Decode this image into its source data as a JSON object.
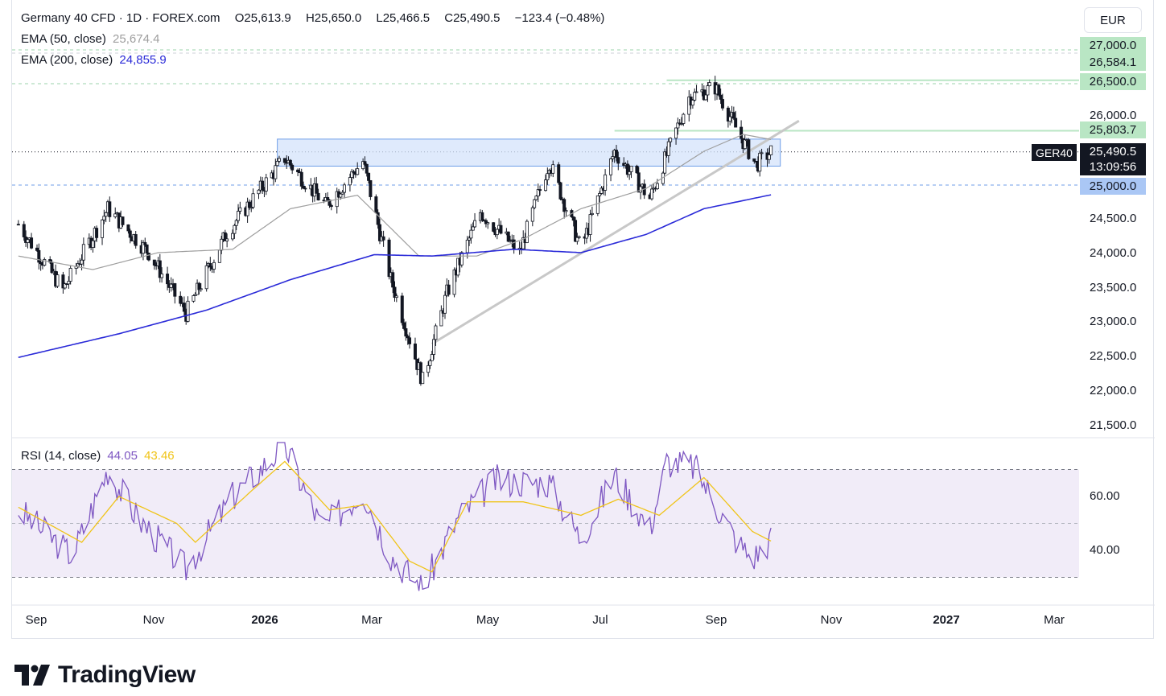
{
  "header": {
    "symbol_line": "Germany 40 CFD · 1D · FOREX.com",
    "open_label": "O",
    "open": "25,613.9",
    "high_label": "H",
    "high": "25,650.0",
    "low_label": "L",
    "low": "25,466.5",
    "close_label": "C",
    "close": "25,490.5",
    "change": "−123.4 (−0.48%)"
  },
  "indicators": {
    "ema50_label": "EMA (50, close)",
    "ema50_value": "25,674.4",
    "ema200_label": "EMA (200, close)",
    "ema200_value": "24,855.9",
    "rsi_label": "RSI (14, close)",
    "rsi_value": "44.05",
    "rsi_ma_value": "43.46"
  },
  "currency": "EUR",
  "symbol_tag": "GER40",
  "price_tags": {
    "t27000": "27,000.0",
    "t26584": "26,584.1",
    "t26500": "26,500.0",
    "t25803": "25,803.7",
    "last": "25,490.5",
    "countdown": "13:09:56",
    "t25000": "25,000.0"
  },
  "price_axis": [
    "26,000.0",
    "24,500.0",
    "24,000.0",
    "23,500.0",
    "23,000.0",
    "22,500.0",
    "22,000.0",
    "21,500.0"
  ],
  "rsi_axis": [
    "60.00",
    "40.00"
  ],
  "time_axis": [
    {
      "label": "Sep",
      "bold": false
    },
    {
      "label": "Nov",
      "bold": false
    },
    {
      "label": "2026",
      "bold": true
    },
    {
      "label": "Mar",
      "bold": false
    },
    {
      "label": "May",
      "bold": false
    },
    {
      "label": "Jul",
      "bold": false
    },
    {
      "label": "Sep",
      "bold": false
    },
    {
      "label": "Nov",
      "bold": false
    },
    {
      "label": "2027",
      "bold": true
    },
    {
      "label": "Mar",
      "bold": false
    }
  ],
  "logo_text": "TradingView",
  "colors": {
    "candle": "#131722",
    "ema50": "#9e9e9e",
    "ema200": "#2a2ad8",
    "rsi": "#7e57c2",
    "rsi_ma": "#f0c419",
    "zone": "#d4e3fb",
    "trendline": "#c8c8c8"
  },
  "chart_data": {
    "type": "candlestick",
    "price_range": [
      21400,
      27150
    ],
    "rsi_range": [
      25,
      82
    ],
    "key_points": [
      {
        "date": "2025-08-22",
        "close": 24420
      },
      {
        "date": "2025-09-15",
        "close": 23450
      },
      {
        "date": "2025-10-09",
        "close": 24650
      },
      {
        "date": "2025-10-31",
        "close": 24000
      },
      {
        "date": "2025-11-20",
        "close": 23100
      },
      {
        "date": "2025-12-12",
        "close": 24300
      },
      {
        "date": "2026-01-12",
        "close": 25400
      },
      {
        "date": "2026-02-03",
        "close": 24700
      },
      {
        "date": "2026-02-23",
        "close": 25350
      },
      {
        "date": "2026-03-10",
        "close": 23600
      },
      {
        "date": "2026-03-27",
        "close": 22100
      },
      {
        "date": "2026-04-09",
        "close": 23400
      },
      {
        "date": "2026-04-27",
        "close": 24600
      },
      {
        "date": "2026-05-18",
        "close": 24000
      },
      {
        "date": "2026-06-03",
        "close": 25350
      },
      {
        "date": "2026-06-20",
        "close": 24050
      },
      {
        "date": "2026-07-08",
        "close": 25500
      },
      {
        "date": "2026-07-27",
        "close": 24800
      },
      {
        "date": "2026-08-17",
        "close": 26300
      },
      {
        "date": "2026-08-31",
        "close": 26450
      },
      {
        "date": "2026-09-12",
        "close": 25800
      },
      {
        "date": "2026-09-22",
        "close": 25300
      },
      {
        "date": "2026-09-30",
        "close": 25490.5
      }
    ],
    "ema50_points": [
      {
        "date": "2025-08-22",
        "value": 23950
      },
      {
        "date": "2025-10-01",
        "value": 23750
      },
      {
        "date": "2025-11-05",
        "value": 24000
      },
      {
        "date": "2025-12-15",
        "value": 24050
      },
      {
        "date": "2026-01-15",
        "value": 24650
      },
      {
        "date": "2026-02-20",
        "value": 24850
      },
      {
        "date": "2026-03-25",
        "value": 23950
      },
      {
        "date": "2026-04-25",
        "value": 23950
      },
      {
        "date": "2026-05-20",
        "value": 24200
      },
      {
        "date": "2026-06-20",
        "value": 24650
      },
      {
        "date": "2026-07-25",
        "value": 24950
      },
      {
        "date": "2026-08-25",
        "value": 25500
      },
      {
        "date": "2026-09-15",
        "value": 25750
      },
      {
        "date": "2026-09-30",
        "value": 25674.4
      }
    ],
    "ema200_points": [
      {
        "date": "2025-08-22",
        "value": 22450
      },
      {
        "date": "2025-10-15",
        "value": 22800
      },
      {
        "date": "2025-12-01",
        "value": 23150
      },
      {
        "date": "2026-01-15",
        "value": 23600
      },
      {
        "date": "2026-03-01",
        "value": 23970
      },
      {
        "date": "2026-04-01",
        "value": 23950
      },
      {
        "date": "2026-05-15",
        "value": 24050
      },
      {
        "date": "2026-06-20",
        "value": 24000
      },
      {
        "date": "2026-07-25",
        "value": 24270
      },
      {
        "date": "2026-08-25",
        "value": 24650
      },
      {
        "date": "2026-09-30",
        "value": 24855.9
      }
    ],
    "trendline": [
      {
        "date": "2026-04-01",
        "value": 22650
      },
      {
        "date": "2026-10-15",
        "value": 25950
      }
    ],
    "resistance_zone": [
      25280,
      25480
    ],
    "levels": [
      27000,
      26584.1,
      26500,
      25803.7,
      25000
    ],
    "rsi_bands": [
      70,
      30
    ],
    "rsi_guide": 50,
    "rsi_key_points": [
      {
        "date": "2025-08-22",
        "value": 55
      },
      {
        "date": "2025-09-20",
        "value": 38
      },
      {
        "date": "2025-10-09",
        "value": 70
      },
      {
        "date": "2025-10-25",
        "value": 52
      },
      {
        "date": "2025-11-20",
        "value": 33
      },
      {
        "date": "2025-12-15",
        "value": 60
      },
      {
        "date": "2026-01-12",
        "value": 79
      },
      {
        "date": "2026-02-01",
        "value": 48
      },
      {
        "date": "2026-02-23",
        "value": 62
      },
      {
        "date": "2026-03-10",
        "value": 38
      },
      {
        "date": "2026-03-27",
        "value": 26
      },
      {
        "date": "2026-04-15",
        "value": 52
      },
      {
        "date": "2026-05-05",
        "value": 66
      },
      {
        "date": "2026-06-03",
        "value": 65
      },
      {
        "date": "2026-06-20",
        "value": 44
      },
      {
        "date": "2026-07-08",
        "value": 68
      },
      {
        "date": "2026-07-27",
        "value": 48
      },
      {
        "date": "2026-08-05",
        "value": 73
      },
      {
        "date": "2026-08-20",
        "value": 71
      },
      {
        "date": "2026-09-12",
        "value": 43
      },
      {
        "date": "2026-09-20",
        "value": 37
      },
      {
        "date": "2026-09-30",
        "value": 44.05
      }
    ],
    "rsi_ma_key_points": [
      {
        "date": "2025-08-22",
        "value": 56
      },
      {
        "date": "2025-09-25",
        "value": 43
      },
      {
        "date": "2025-10-15",
        "value": 60
      },
      {
        "date": "2025-11-15",
        "value": 50
      },
      {
        "date": "2025-11-25",
        "value": 43
      },
      {
        "date": "2025-12-25",
        "value": 62
      },
      {
        "date": "2026-01-12",
        "value": 73
      },
      {
        "date": "2026-02-05",
        "value": 55
      },
      {
        "date": "2026-02-25",
        "value": 57
      },
      {
        "date": "2026-03-20",
        "value": 36
      },
      {
        "date": "2026-04-01",
        "value": 32
      },
      {
        "date": "2026-04-20",
        "value": 58
      },
      {
        "date": "2026-05-20",
        "value": 58
      },
      {
        "date": "2026-06-20",
        "value": 53
      },
      {
        "date": "2026-07-10",
        "value": 59
      },
      {
        "date": "2026-08-01",
        "value": 53
      },
      {
        "date": "2026-08-25",
        "value": 67
      },
      {
        "date": "2026-09-20",
        "value": 47
      },
      {
        "date": "2026-09-30",
        "value": 43.46
      }
    ]
  }
}
